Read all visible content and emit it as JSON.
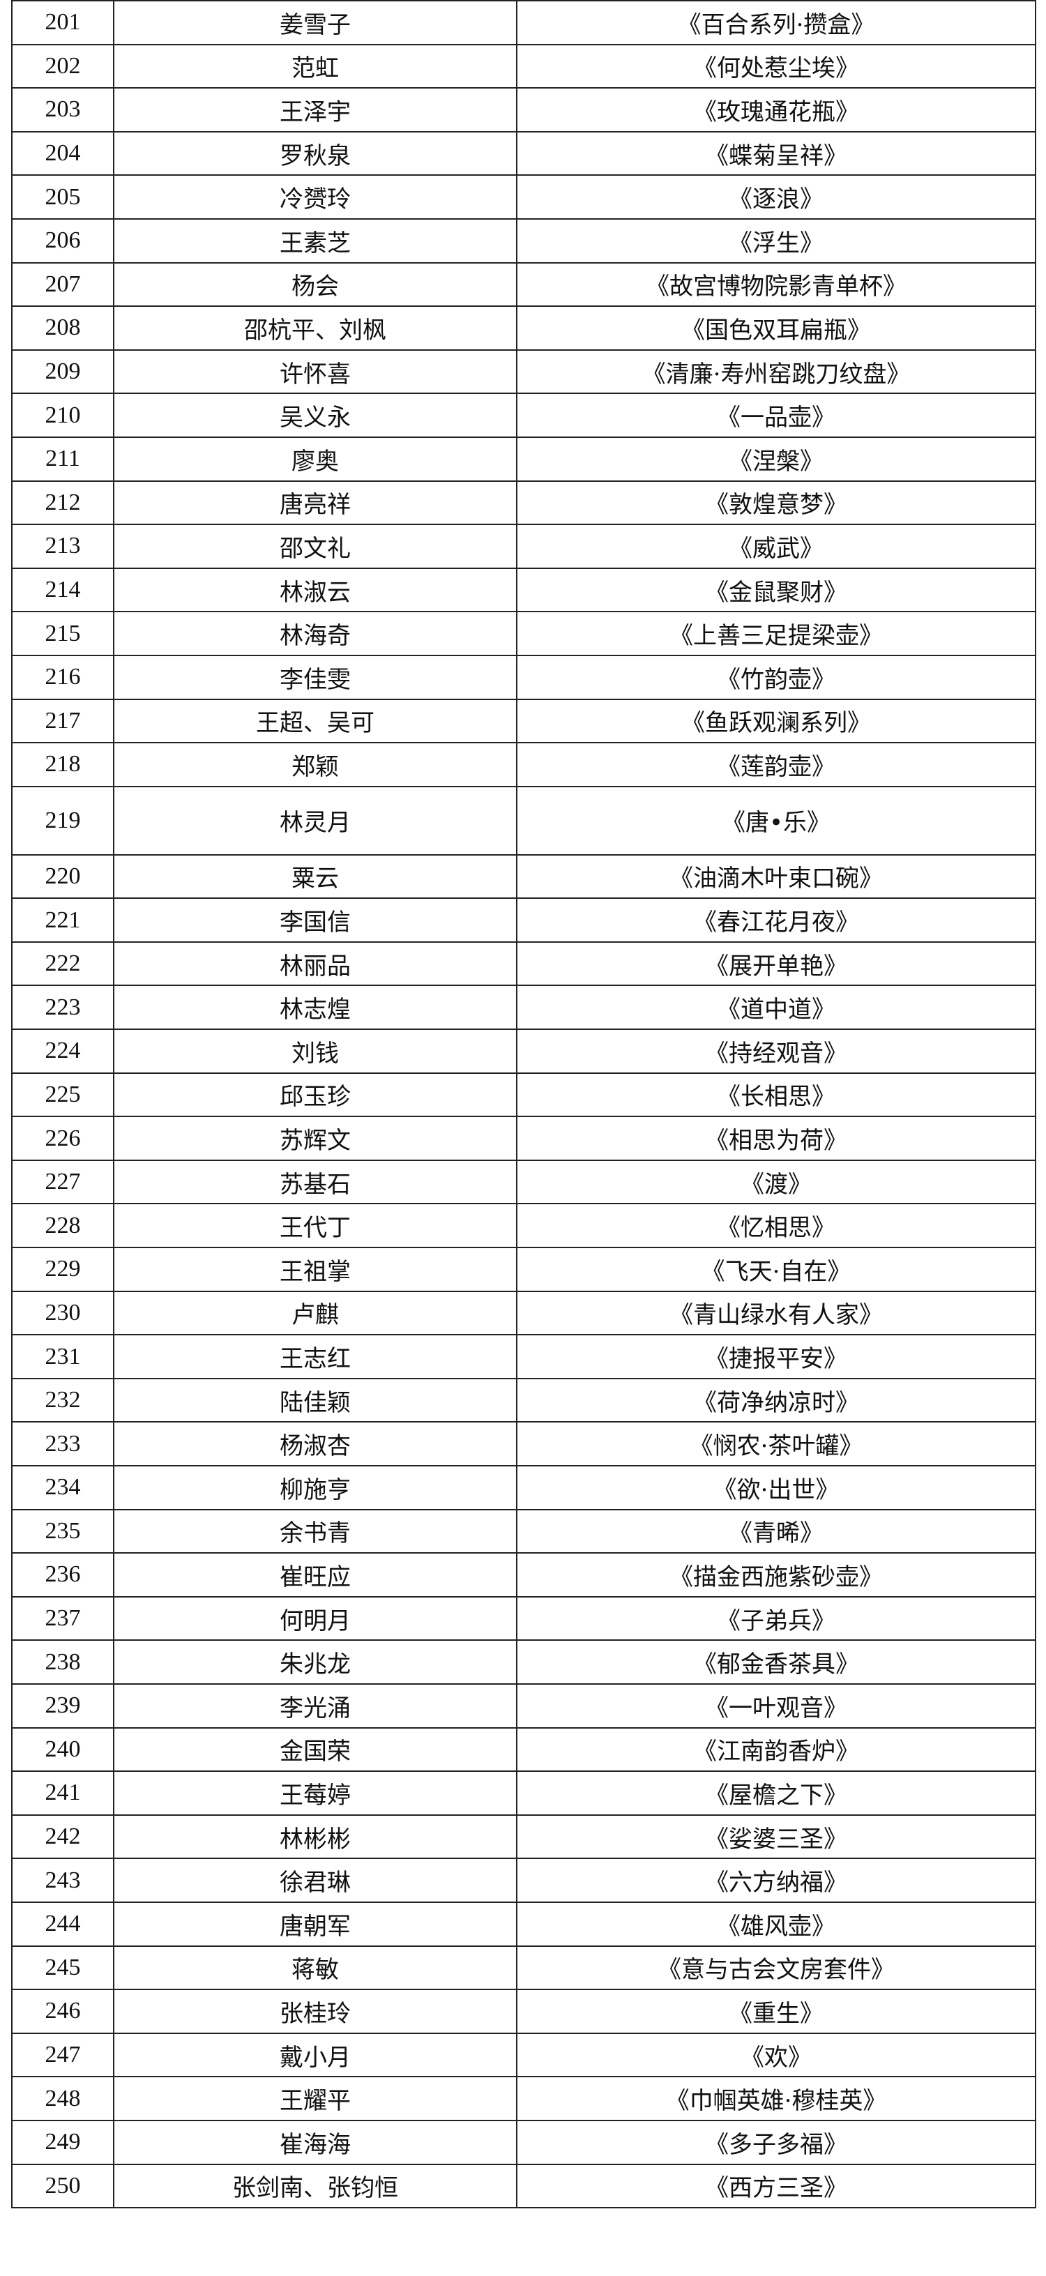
{
  "table": {
    "rows": [
      [
        "201",
        "姜雪子",
        "《百合系列·攒盒》"
      ],
      [
        "202",
        "范虹",
        "《何处惹尘埃》"
      ],
      [
        "203",
        "王泽宇",
        "《玫瑰通花瓶》"
      ],
      [
        "204",
        "罗秋泉",
        "《蝶菊呈祥》"
      ],
      [
        "205",
        "冷赟玲",
        "《逐浪》"
      ],
      [
        "206",
        "王素芝",
        "《浮生》"
      ],
      [
        "207",
        "杨会",
        "《故宫博物院影青单杯》"
      ],
      [
        "208",
        "邵杭平、刘枫",
        "《国色双耳扁瓶》"
      ],
      [
        "209",
        "许怀喜",
        "《清廉·寿州窑跳刀纹盘》"
      ],
      [
        "210",
        "吴义永",
        "《一品壶》"
      ],
      [
        "211",
        "廖奥",
        "《涅槃》"
      ],
      [
        "212",
        "唐亮祥",
        "《敦煌意梦》"
      ],
      [
        "213",
        "邵文礼",
        "《威武》"
      ],
      [
        "214",
        "林淑云",
        "《金鼠聚财》"
      ],
      [
        "215",
        "林海奇",
        "《上善三足提梁壶》"
      ],
      [
        "216",
        "李佳雯",
        "《竹韵壶》"
      ],
      [
        "217",
        "王超、吴可",
        "《鱼跃观澜系列》"
      ],
      [
        "218",
        "郑颖",
        "《莲韵壶》"
      ],
      [
        "219",
        "林灵月",
        "《唐•乐》"
      ],
      [
        "220",
        "粟云",
        "《油滴木叶束口碗》"
      ],
      [
        "221",
        "李国信",
        "《春江花月夜》"
      ],
      [
        "222",
        "林丽品",
        "《展开单艳》"
      ],
      [
        "223",
        "林志煌",
        "《道中道》"
      ],
      [
        "224",
        "刘钱",
        "《持经观音》"
      ],
      [
        "225",
        "邱玉珍",
        "《长相思》"
      ],
      [
        "226",
        "苏辉文",
        "《相思为荷》"
      ],
      [
        "227",
        "苏基石",
        "《渡》"
      ],
      [
        "228",
        "王代丁",
        "《忆相思》"
      ],
      [
        "229",
        "王祖掌",
        "《飞天·自在》"
      ],
      [
        "230",
        "卢麒",
        "《青山绿水有人家》"
      ],
      [
        "231",
        "王志红",
        "《捷报平安》"
      ],
      [
        "232",
        "陆佳颖",
        "《荷净纳凉时》"
      ],
      [
        "233",
        "杨淑杏",
        "《悯农·茶叶罐》"
      ],
      [
        "234",
        "柳施亨",
        "《欲·出世》"
      ],
      [
        "235",
        "余书青",
        "《青晞》"
      ],
      [
        "236",
        "崔旺应",
        "《描金西施紫砂壶》"
      ],
      [
        "237",
        "何明月",
        "《子弟兵》"
      ],
      [
        "238",
        "朱兆龙",
        "《郁金香茶具》"
      ],
      [
        "239",
        "李光涌",
        "《一叶观音》"
      ],
      [
        "240",
        "金国荣",
        "《江南韵香炉》"
      ],
      [
        "241",
        "王莓婷",
        "《屋檐之下》"
      ],
      [
        "242",
        "林彬彬",
        "《娑婆三圣》"
      ],
      [
        "243",
        "徐君琳",
        "《六方纳福》"
      ],
      [
        "244",
        "唐朝军",
        "《雄风壶》"
      ],
      [
        "245",
        "蒋敏",
        "《意与古会文房套件》"
      ],
      [
        "246",
        "张桂玲",
        "《重生》"
      ],
      [
        "247",
        "戴小月",
        "《欢》"
      ],
      [
        "248",
        "王耀平",
        "《巾帼英雄·穆桂英》"
      ],
      [
        "249",
        "崔海海",
        "《多子多福》"
      ],
      [
        "250",
        "张剑南、张钧恒",
        "《西方三圣》"
      ]
    ]
  }
}
